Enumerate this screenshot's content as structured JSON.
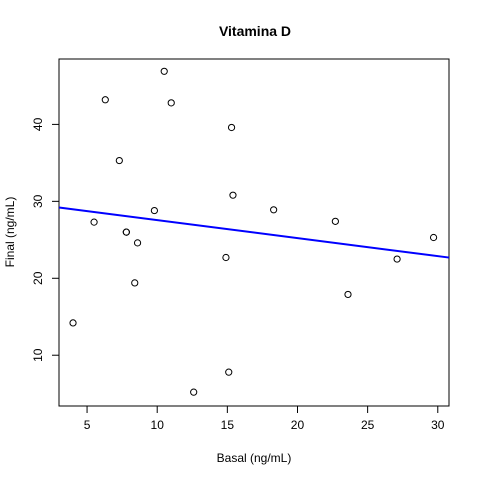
{
  "chart_data": {
    "type": "scatter",
    "title": "Vitamina D",
    "xlabel": "Basal (ng/mL)",
    "ylabel": "Final (ng/mL)",
    "xlim": [
      3.0,
      30.8
    ],
    "ylim": [
      3.4,
      48.5
    ],
    "xticks": [
      5,
      10,
      15,
      20,
      25,
      30
    ],
    "yticks": [
      10,
      20,
      30,
      40
    ],
    "grid": false,
    "points": [
      {
        "x": 4.0,
        "y": 14.2
      },
      {
        "x": 5.5,
        "y": 27.3
      },
      {
        "x": 6.3,
        "y": 43.2
      },
      {
        "x": 7.3,
        "y": 35.3
      },
      {
        "x": 7.8,
        "y": 26.0
      },
      {
        "x": 7.8,
        "y": 26.0
      },
      {
        "x": 8.4,
        "y": 19.4
      },
      {
        "x": 8.6,
        "y": 24.6
      },
      {
        "x": 9.8,
        "y": 28.8
      },
      {
        "x": 10.5,
        "y": 46.9
      },
      {
        "x": 11.0,
        "y": 42.8
      },
      {
        "x": 12.6,
        "y": 5.2
      },
      {
        "x": 14.9,
        "y": 22.7
      },
      {
        "x": 15.1,
        "y": 7.8
      },
      {
        "x": 15.3,
        "y": 39.6
      },
      {
        "x": 15.4,
        "y": 30.8
      },
      {
        "x": 18.3,
        "y": 28.9
      },
      {
        "x": 22.7,
        "y": 27.4
      },
      {
        "x": 23.6,
        "y": 17.9
      },
      {
        "x": 27.1,
        "y": 22.5
      },
      {
        "x": 29.7,
        "y": 25.3
      }
    ],
    "regression_line": {
      "intercept": 29.9,
      "slope": -0.234,
      "color": "#0000ff"
    }
  }
}
